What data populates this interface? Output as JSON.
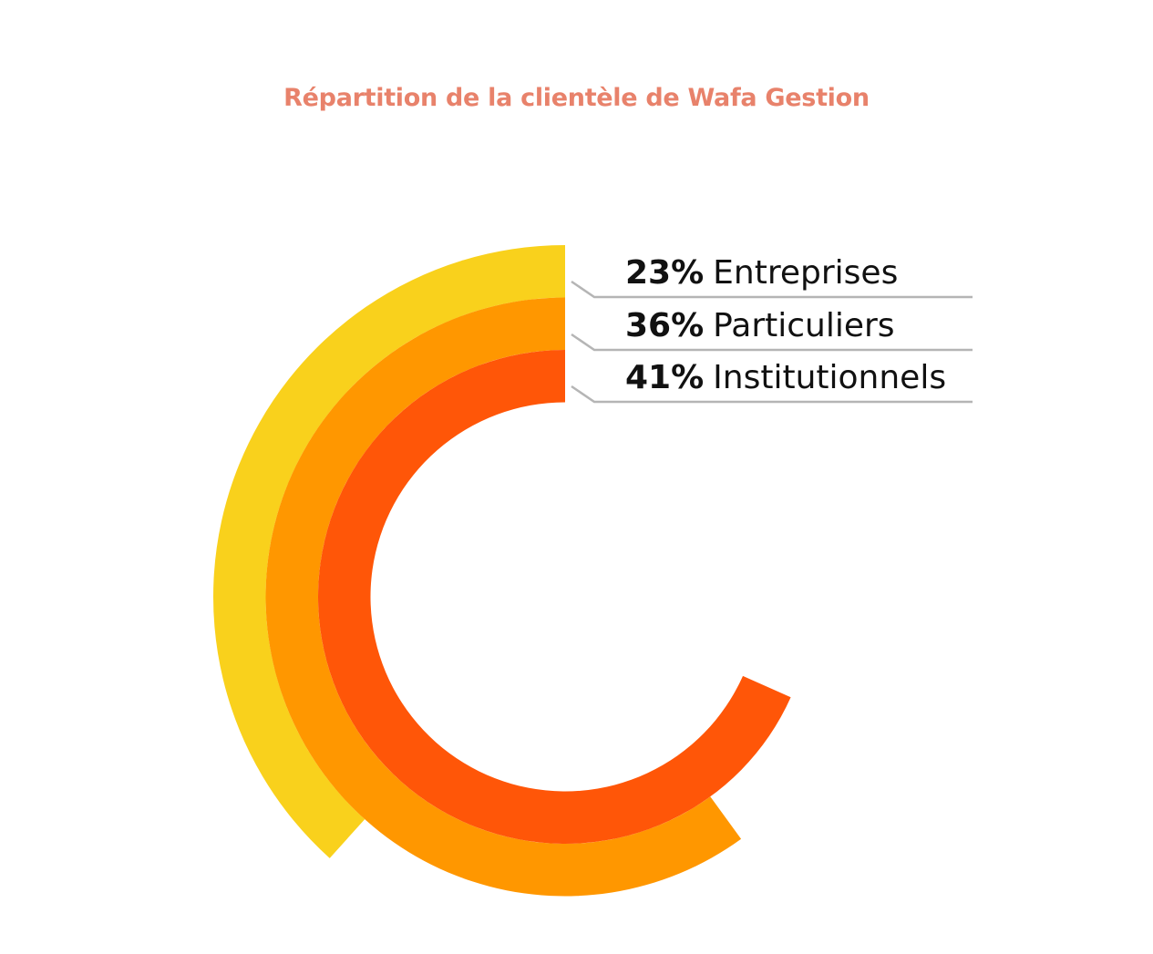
{
  "title": "Répartition de la clientèle de Wafa Gestion",
  "colors": {
    "title": "#E8826B",
    "leader_line": "#B5B5B5",
    "legend_text": "#111111"
  },
  "chart_data": {
    "type": "radial-bar",
    "title": "Répartition de la clientèle de Wafa Gestion",
    "unit": "%",
    "max_value": 100,
    "series": [
      {
        "name": "Entreprises",
        "value": 23,
        "percent_label": "23%",
        "color": "#F9D11C"
      },
      {
        "name": "Particuliers",
        "value": 36,
        "percent_label": "36%",
        "color": "#FF9700"
      },
      {
        "name": "Institutionnels",
        "value": 41,
        "percent_label": "41%",
        "color": "#FF5608"
      }
    ]
  }
}
